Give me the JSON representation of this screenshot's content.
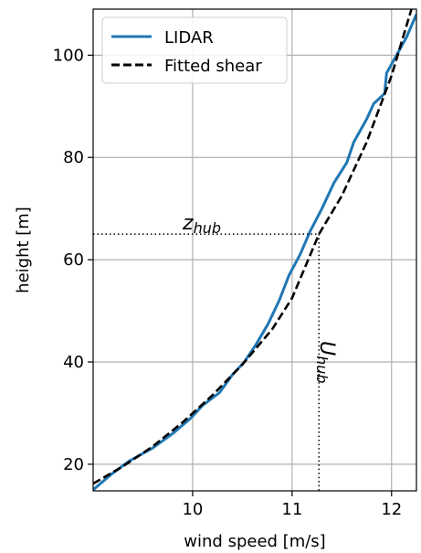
{
  "chart_data": {
    "type": "line",
    "xlabel": "wind speed [m/s]",
    "ylabel": "height [m]",
    "xlim": [
      9.0,
      12.25
    ],
    "ylim": [
      14.8,
      109
    ],
    "xticks": [
      10,
      11,
      12
    ],
    "yticks": [
      20,
      40,
      60,
      80,
      100
    ],
    "grid": true,
    "legend_position": "top-left",
    "series": [
      {
        "name": "LIDAR",
        "color": "#1f77b4",
        "style": "solid",
        "points": [
          [
            9.0,
            15.0
          ],
          [
            9.18,
            18.0
          ],
          [
            9.36,
            20.6
          ],
          [
            9.6,
            23.2
          ],
          [
            9.8,
            26.0
          ],
          [
            9.98,
            29.0
          ],
          [
            10.1,
            31.5
          ],
          [
            10.27,
            34.0
          ],
          [
            10.4,
            37.5
          ],
          [
            10.52,
            40.0
          ],
          [
            10.64,
            43.5
          ],
          [
            10.76,
            47.5
          ],
          [
            10.87,
            52.0
          ],
          [
            10.97,
            57.0
          ],
          [
            11.08,
            61.0
          ],
          [
            11.18,
            65.5
          ],
          [
            11.3,
            70.0
          ],
          [
            11.42,
            75.0
          ],
          [
            11.55,
            79.0
          ],
          [
            11.62,
            83.0
          ],
          [
            11.75,
            87.5
          ],
          [
            11.82,
            90.5
          ],
          [
            11.93,
            92.5
          ],
          [
            11.95,
            96.5
          ],
          [
            12.05,
            100.0
          ],
          [
            12.15,
            103.5
          ],
          [
            12.25,
            108.0
          ]
        ]
      },
      {
        "name": "Fitted shear",
        "color": "#000000",
        "style": "dashed",
        "points": [
          [
            9.0,
            16.2
          ],
          [
            9.3,
            19.6
          ],
          [
            9.6,
            23.5
          ],
          [
            9.9,
            28.2
          ],
          [
            10.2,
            33.5
          ],
          [
            10.5,
            39.5
          ],
          [
            10.8,
            46.4
          ],
          [
            11.0,
            52.5
          ],
          [
            11.27,
            65.0
          ],
          [
            11.5,
            72.5
          ],
          [
            11.75,
            83.0
          ],
          [
            12.0,
            96.0
          ],
          [
            12.2,
            109.0
          ]
        ]
      }
    ],
    "annotations": [
      {
        "name": "z-hub",
        "base": "z",
        "sub": "hub",
        "hub_height": 65,
        "hub_speed": 11.27
      },
      {
        "name": "u-hub",
        "base": "U",
        "sub": "hub"
      }
    ]
  }
}
